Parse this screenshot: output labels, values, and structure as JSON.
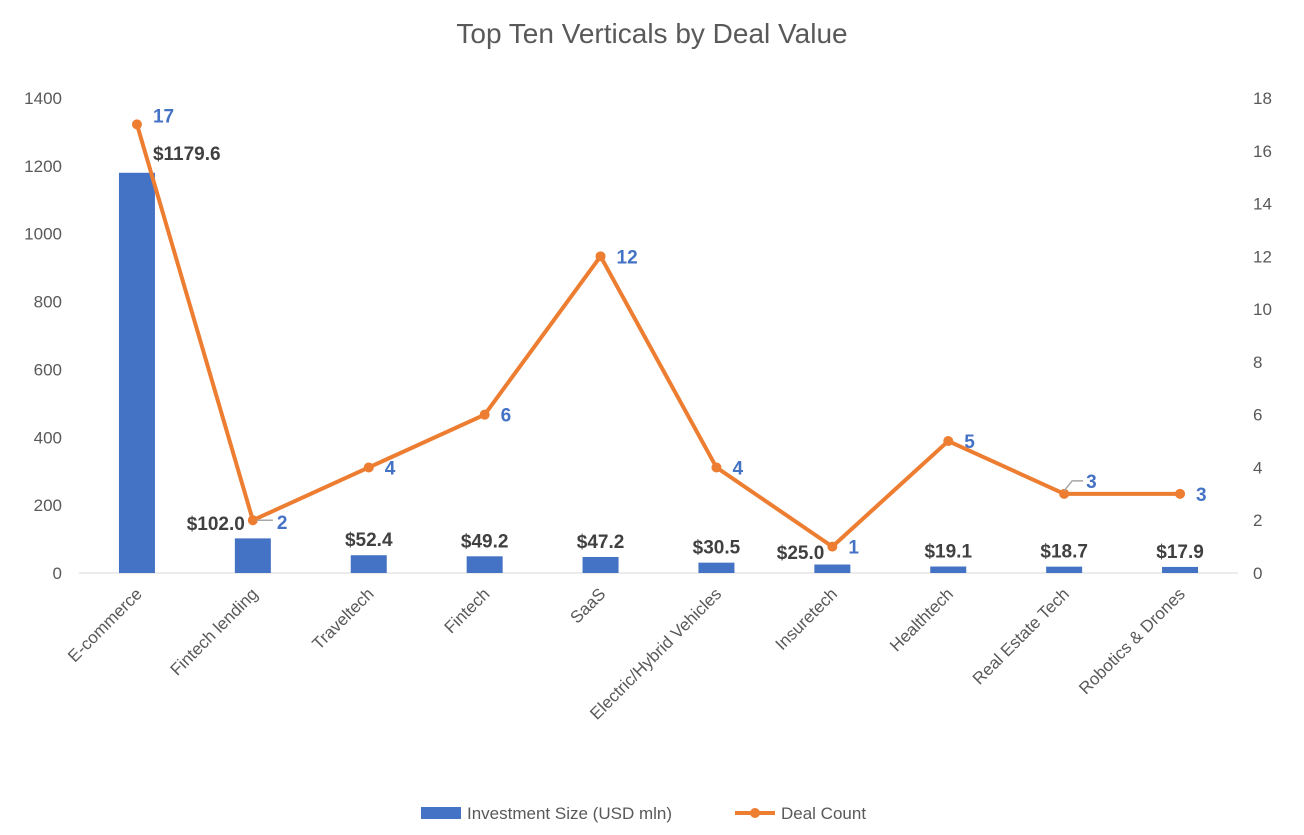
{
  "chart_data": {
    "type": "bar+line",
    "title": "Top Ten Verticals by Deal Value",
    "categories": [
      "E-commerce",
      "Fintech lending",
      "Traveltech",
      "Fintech",
      "SaaS",
      "Electric/Hybrid Vehicles",
      "Insuretech",
      "Healthtech",
      "Real Estate Tech",
      "Robotics & Drones"
    ],
    "series": [
      {
        "name": "Investment Size (USD mln)",
        "type": "bar",
        "axis": "left",
        "color": "#4472C4",
        "values": [
          1179.6,
          102.0,
          52.4,
          49.2,
          47.2,
          30.5,
          25.0,
          19.1,
          18.7,
          17.9
        ],
        "labels": [
          "$1179.6",
          "$102.0",
          "$52.4",
          "$49.2",
          "$47.2",
          "$30.5",
          "$25.0",
          "$19.1",
          "$18.7",
          "$17.9"
        ]
      },
      {
        "name": "Deal Count",
        "type": "line",
        "axis": "right",
        "color": "#ED7D31",
        "values": [
          17,
          2,
          4,
          6,
          12,
          4,
          1,
          5,
          3,
          3
        ],
        "labels": [
          "17",
          "2",
          "4",
          "6",
          "12",
          "4",
          "1",
          "5",
          "3",
          "3"
        ]
      }
    ],
    "left_axis": {
      "ylim": [
        0,
        1400
      ],
      "ticks": [
        "0",
        "200",
        "400",
        "600",
        "800",
        "1000",
        "1200",
        "1400"
      ]
    },
    "right_axis": {
      "ylim": [
        0,
        18
      ],
      "ticks": [
        "0",
        "2",
        "4",
        "6",
        "8",
        "10",
        "12",
        "14",
        "16",
        "18"
      ]
    },
    "grid": false,
    "legend": "bottom"
  }
}
